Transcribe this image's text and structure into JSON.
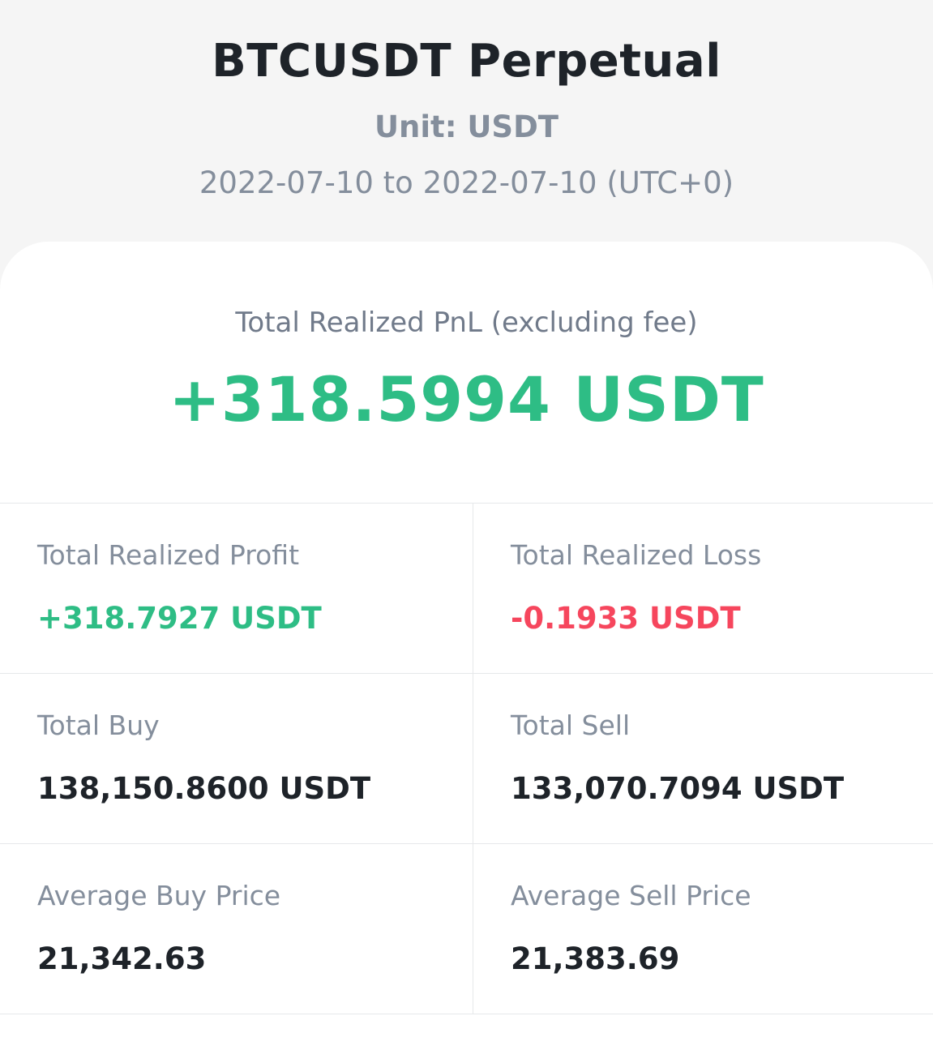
{
  "header": {
    "title": "BTCUSDT Perpetual",
    "unit": "Unit: USDT",
    "date_range": "2022-07-10 to 2022-07-10 (UTC+0)"
  },
  "summary": {
    "pnl_label": "Total Realized PnL (excluding fee)",
    "pnl_value": "+318.5994 USDT"
  },
  "stats": {
    "realized_profit": {
      "label": "Total Realized Profit",
      "value": "+318.7927 USDT"
    },
    "realized_loss": {
      "label": "Total Realized Loss",
      "value": "-0.1933 USDT"
    },
    "total_buy": {
      "label": "Total Buy",
      "value": "138,150.8600 USDT"
    },
    "total_sell": {
      "label": "Total Sell",
      "value": "133,070.7094 USDT"
    },
    "avg_buy_price": {
      "label": "Average Buy Price",
      "value": "21,342.63"
    },
    "avg_sell_price": {
      "label": "Average Sell Price",
      "value": "21,383.69"
    }
  },
  "colors": {
    "positive": "#2ebd85",
    "negative": "#f6465d",
    "text_primary": "#1e2329",
    "text_secondary": "#848e9c",
    "background": "#f5f5f5",
    "card": "#ffffff"
  }
}
